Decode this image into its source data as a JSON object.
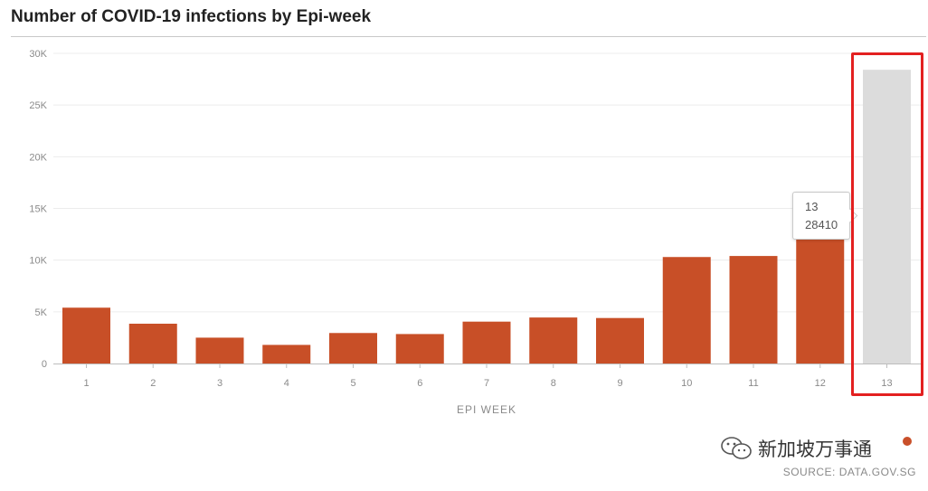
{
  "chart_data": {
    "type": "bar",
    "title": "Number of COVID-19 infections by Epi-week",
    "xlabel": "EPI WEEK",
    "ylabel": "",
    "ylim": [
      0,
      30000
    ],
    "yticks": [
      "0",
      "5K",
      "10K",
      "15K",
      "20K",
      "25K",
      "30K"
    ],
    "ytick_values": [
      0,
      5000,
      10000,
      15000,
      20000,
      25000,
      30000
    ],
    "categories": [
      "1",
      "2",
      "3",
      "4",
      "5",
      "6",
      "7",
      "8",
      "9",
      "10",
      "11",
      "12",
      "13"
    ],
    "values": [
      5400,
      3850,
      2500,
      1800,
      2950,
      2850,
      4050,
      4450,
      4400,
      10300,
      10400,
      14000,
      28410
    ],
    "highlighted_category": "13",
    "colors": {
      "bar": "#c84f27",
      "highlight_bar": "#dcdcdc",
      "grid": "#ececec",
      "axis": "#bdbdbd"
    },
    "grid": true
  },
  "tooltip": {
    "category": "13",
    "value": "28410"
  },
  "watermark": {
    "text": "新加坡万事通",
    "icon": "wechat-icon"
  },
  "source": "SOURCE: DATA.GOV.SG"
}
